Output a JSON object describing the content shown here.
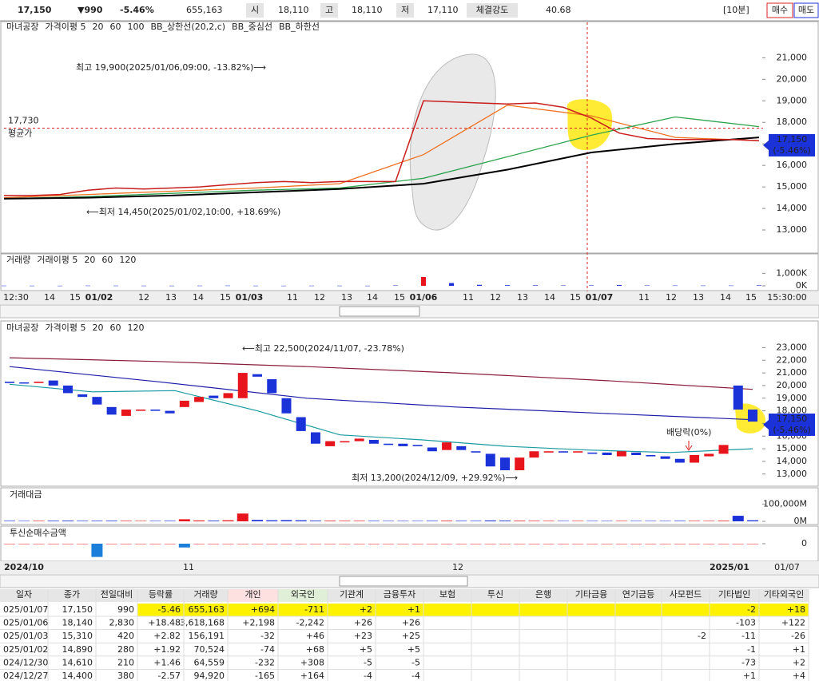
{
  "top_bar": {
    "price": "17,150",
    "change": "▼990",
    "rate": "-5.46%",
    "volume": "655,163",
    "open_label": "시",
    "open": "18,110",
    "high_label": "고",
    "high": "18,110",
    "low_label": "저",
    "low": "17,110",
    "strength_label": "체결강도",
    "strength": "40.68",
    "interval": "[10분]",
    "buy": "매수",
    "sell": "매도"
  },
  "intraday_chart": {
    "type": "line",
    "name": "마녀공장",
    "ma_label": "가격이평 5",
    "bb_labels": [
      "BB_상한선(20,2,c)",
      "BB_중심선",
      "BB_하한선"
    ],
    "ylim": [
      12000,
      22200
    ],
    "yticks": [
      {
        "value": 21000,
        "label": "21,000"
      },
      {
        "value": 20000,
        "label": "20,000"
      },
      {
        "value": 19000,
        "label": "19,000"
      },
      {
        "value": 18000,
        "label": "18,000"
      },
      {
        "value": 17000,
        "label": "17,000"
      },
      {
        "value": 16000,
        "label": "16,000"
      },
      {
        "value": 15000,
        "label": "15,000"
      },
      {
        "value": 14000,
        "label": "14,000"
      },
      {
        "value": 13000,
        "label": "13,000"
      }
    ],
    "price": {
      "color": "#c81e1e",
      "values": [
        14600,
        14600,
        14650,
        14850,
        14950,
        14900,
        14950,
        15000,
        15100,
        15200,
        15250,
        15200,
        15250,
        15250,
        15250,
        19000,
        18950,
        18900,
        18850,
        18900,
        18700,
        18200,
        17500,
        17250,
        17200,
        17200,
        17200,
        17150
      ]
    },
    "series": [
      {
        "name": "20",
        "color": "#f07020",
        "values": [
          14500,
          14650,
          14800,
          14950,
          15150,
          16500,
          18800,
          18300,
          17300,
          17150
        ]
      },
      {
        "name": "60",
        "color": "#2ea44f",
        "values": [
          14450,
          14550,
          14700,
          14850,
          14950,
          15400,
          16400,
          17400,
          18250,
          17800
        ]
      },
      {
        "name": "100",
        "color": "#000000",
        "values": [
          14450,
          14500,
          14600,
          14750,
          14900,
          15150,
          15800,
          16600,
          17000,
          17300
        ]
      }
    ],
    "average": {
      "value": 17730,
      "label": "17,730",
      "name": "평균가"
    },
    "high_note": "최고 19,900(2025/01/06,09:00, -13.82%)⟶",
    "low_note": "⟵최저 14,450(2025/01/02,10:00, +18.69%)",
    "current": [
      "17,150",
      "(-5.46%)"
    ],
    "volume": {
      "name": "거래량",
      "ma_label": "거래이평 5",
      "legend": [
        "20",
        "60",
        "120"
      ],
      "ylim": [
        0,
        1400
      ],
      "yticks": [
        {
          "value": 1000,
          "label": "1,000K"
        },
        {
          "value": 0,
          "label": "0K"
        }
      ],
      "values": [
        15,
        12,
        10,
        18,
        14,
        12,
        10,
        15,
        20,
        12,
        10,
        14,
        12,
        10,
        30,
        700,
        220,
        80,
        50,
        40,
        30,
        35,
        60,
        30,
        25,
        20,
        22,
        40
      ]
    },
    "x_labels": [
      "12:30",
      "14",
      "15",
      "01/02",
      "12",
      "13",
      "14",
      "15",
      "01/03",
      "11",
      "12",
      "13",
      "14",
      "15",
      "01/06",
      "11",
      "12",
      "13",
      "14",
      "15",
      "01/07",
      "11",
      "12",
      "13",
      "14",
      "15",
      "15:30:00"
    ]
  },
  "daily_chart": {
    "type": "candlestick",
    "name": "마녀공장",
    "ma_label": "가격이평 5",
    "ylim": [
      12100,
      24100
    ],
    "yticks": [
      {
        "value": 23000,
        "label": "23,000"
      },
      {
        "value": 22000,
        "label": "22,000"
      },
      {
        "value": 21000,
        "label": "21,000"
      },
      {
        "value": 20000,
        "label": "20,000"
      },
      {
        "value": 19000,
        "label": "19,000"
      },
      {
        "value": 18000,
        "label": "18,000"
      },
      {
        "value": 17000,
        "label": "17,000"
      },
      {
        "value": 16000,
        "label": "16,000"
      },
      {
        "value": 15000,
        "label": "15,000"
      },
      {
        "value": 14000,
        "label": "14,000"
      },
      {
        "value": 13000,
        "label": "13,000"
      }
    ],
    "open": [
      20300,
      20250,
      20200,
      20400,
      20000,
      19300,
      19100,
      18300,
      17600,
      18000,
      18100,
      18000,
      18300,
      18700,
      19200,
      19000,
      19000,
      20900,
      20500,
      19000,
      17500,
      16300,
      15200,
      15500,
      15600,
      15700,
      15400,
      15400,
      15300,
      15100,
      14900,
      15200,
      14800,
      14600,
      14300,
      13300,
      14300,
      14700,
      14800,
      14700,
      14700,
      14700,
      14400,
      14700,
      14500,
      14400,
      14200,
      13900,
      14400,
      14600,
      20000,
      18100
    ],
    "close": [
      20200,
      20200,
      20300,
      20000,
      19400,
      19100,
      18500,
      17700,
      18100,
      18100,
      18000,
      17800,
      18800,
      19100,
      19000,
      19400,
      21000,
      20700,
      19400,
      17800,
      16400,
      15400,
      15600,
      15600,
      15800,
      15400,
      15300,
      15200,
      15200,
      14800,
      15500,
      14900,
      14700,
      13600,
      13300,
      14300,
      14800,
      14800,
      14700,
      14800,
      14600,
      14500,
      14800,
      14500,
      14400,
      14200,
      13900,
      14500,
      14600,
      15300,
      18100,
      17150
    ],
    "series": [
      {
        "name": "20",
        "color": "#1a9aa0",
        "values": [
          20100,
          19500,
          19600,
          18000,
          16100,
          15700,
          15200,
          14900,
          14700,
          15000
        ]
      },
      {
        "name": "60",
        "color": "#1c1ca8",
        "values": [
          21500,
          20300,
          19000,
          18300,
          17800,
          17300
        ]
      },
      {
        "name": "120",
        "color": "#8a1c3c",
        "values": [
          22200,
          21900,
          21500,
          21000,
          20400,
          19700
        ]
      }
    ],
    "high_note": "⟵최고 22,500(2024/11/07, -23.78%)",
    "low_note": "최저 13,200(2024/12/09, +29.92%)⟶",
    "event_note": "배당락(0%)",
    "current": [
      "17,150",
      "(-5.46%)"
    ],
    "amount": {
      "name": "거래대금",
      "ylim": [
        0,
        120000
      ],
      "yticks": [
        {
          "value": 100000,
          "label": "100,000M"
        },
        {
          "value": 0,
          "label": "0M"
        }
      ],
      "values": [
        3000,
        2500,
        2800,
        3500,
        4000,
        3000,
        3200,
        3500,
        3000,
        2500,
        2600,
        3000,
        12000,
        5000,
        4000,
        6000,
        45000,
        8000,
        6000,
        7000,
        6000,
        4000,
        3500,
        3000,
        3000,
        2800,
        2600,
        2500,
        2500,
        3000,
        3500,
        3000,
        2800,
        5000,
        4000,
        3500,
        3000,
        2800,
        2500,
        2600,
        2500,
        2400,
        2600,
        2500,
        2500,
        2400,
        3000,
        2800,
        2600,
        3500,
        32000,
        6000
      ]
    },
    "institution": {
      "name": "투신순매수금액",
      "ylim": [
        -40000,
        40000
      ],
      "yticks": [
        0
      ],
      "values": [
        0,
        0,
        0,
        0,
        0,
        0,
        -35000,
        0,
        0,
        0,
        0,
        0,
        -10000,
        0,
        0,
        0,
        0,
        0,
        0,
        0,
        0,
        0,
        0,
        0,
        0,
        0,
        0,
        0,
        0,
        0,
        0,
        0,
        0,
        0,
        0,
        0,
        0,
        0,
        0,
        0,
        0,
        0,
        0,
        0,
        0,
        0,
        0,
        0,
        0,
        0,
        0,
        0
      ]
    },
    "x_labels": [
      "2024/10",
      "11",
      "12",
      "2025/01",
      "01/07"
    ]
  },
  "table": {
    "headers": [
      "일자",
      "종가",
      "전일대비",
      "등락률",
      "거래량",
      "개인",
      "외국인",
      "기관계",
      "금융투자",
      "보험",
      "투신",
      "은행",
      "기타금융",
      "연기금등",
      "사모펀드",
      "기타법인",
      "기타외국인"
    ],
    "rows": [
      [
        "025/01/07",
        "17,150",
        "990",
        "-5.46",
        "655,163",
        "+694",
        "-711",
        "+2",
        "+1",
        null,
        null,
        null,
        null,
        null,
        null,
        "-2",
        "+18"
      ],
      [
        "025/01/06",
        "18,140",
        "2,830",
        "+18.48",
        "3,618,168",
        "+2,198",
        "-2,242",
        "+26",
        "+26",
        null,
        null,
        null,
        null,
        null,
        null,
        "-103",
        "+122"
      ],
      [
        "025/01/03",
        "15,310",
        "420",
        "+2.82",
        "156,191",
        "-32",
        "+46",
        "+23",
        "+25",
        null,
        null,
        null,
        null,
        null,
        "-2",
        "-11",
        "-26"
      ],
      [
        "025/01/02",
        "14,890",
        "280",
        "+1.92",
        "70,524",
        "-74",
        "+68",
        "+5",
        "+5",
        null,
        null,
        null,
        null,
        null,
        null,
        "-1",
        "+1"
      ],
      [
        "024/12/30",
        "14,610",
        "210",
        "+1.46",
        "64,559",
        "-232",
        "+308",
        "-5",
        "-5",
        null,
        null,
        null,
        null,
        null,
        null,
        "-73",
        "+2"
      ],
      [
        "024/12/27",
        "14,400",
        "380",
        "-2.57",
        "94,920",
        "-165",
        "+164",
        "-4",
        "-4",
        null,
        null,
        null,
        null,
        null,
        null,
        "+1",
        "+4"
      ]
    ]
  }
}
